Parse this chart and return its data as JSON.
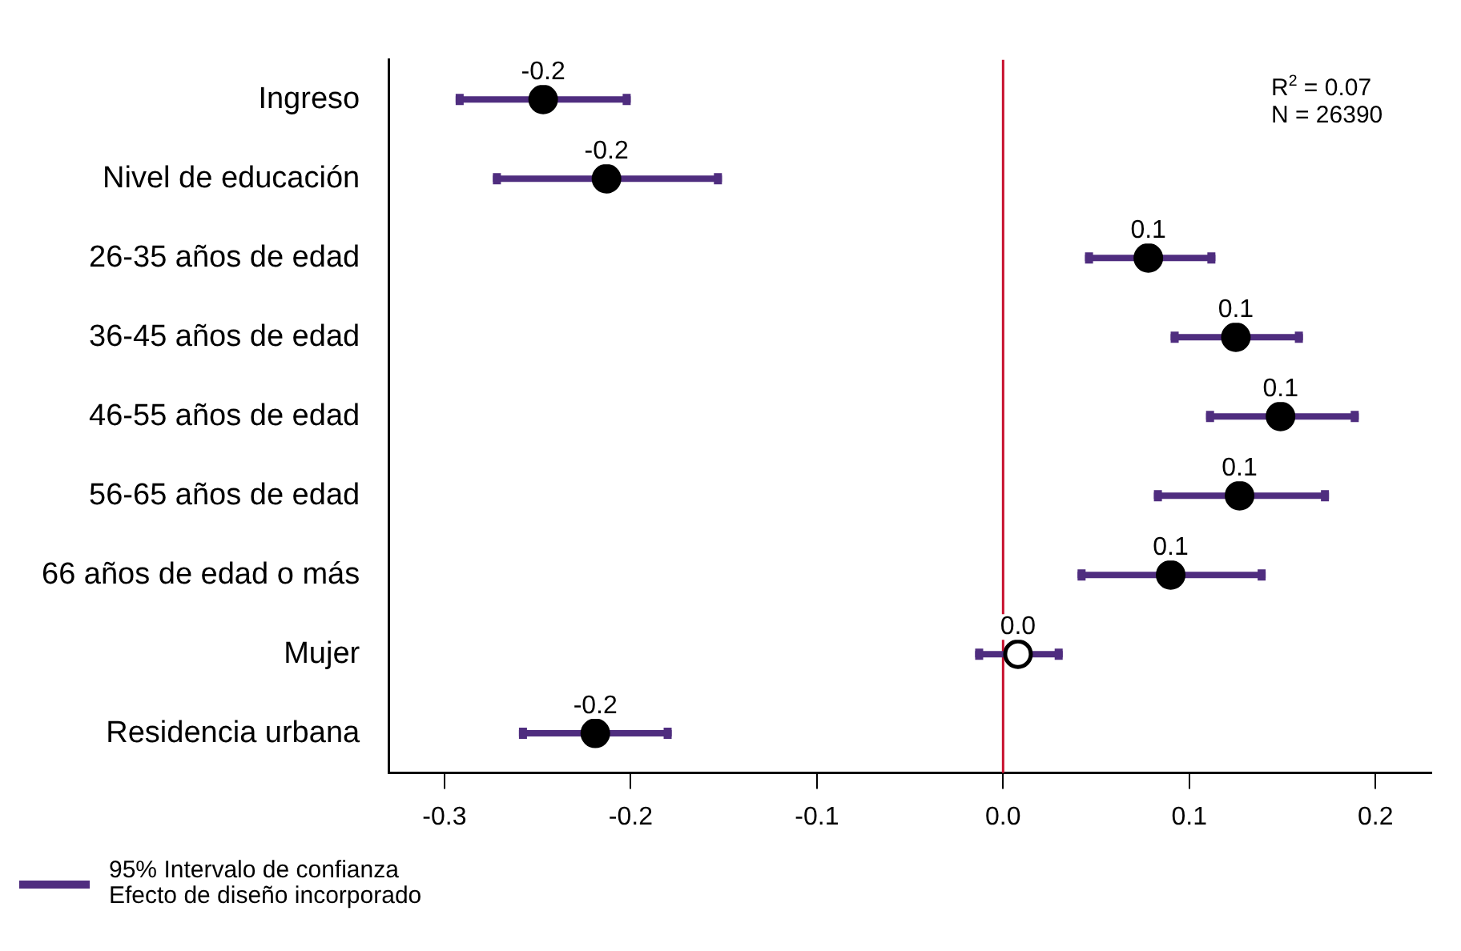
{
  "chart_data": {
    "type": "scatter",
    "orientation": "horizontal",
    "categories": [
      "Ingreso",
      "Nivel de educación",
      "26-35 años de edad",
      "36-45 años de edad",
      "46-55 años de edad",
      "56-65 años de edad",
      "66 años de edad o más",
      "Mujer",
      "Residencia urbana"
    ],
    "series": [
      {
        "color": "#000000",
        "values": [
          -0.247,
          -0.213,
          0.078,
          0.125,
          0.149,
          0.127,
          0.09,
          null,
          -0.219
        ],
        "errors": [
          [
            -0.294,
            -0.2
          ],
          [
            -0.274,
            -0.151
          ],
          [
            0.044,
            0.114
          ],
          [
            0.09,
            0.161
          ],
          [
            0.109,
            0.191
          ],
          [
            0.081,
            0.175
          ],
          [
            0.04,
            0.141
          ],
          null,
          [
            -0.26,
            -0.178
          ]
        ],
        "value_labels": [
          "-0.2",
          "-0.2",
          "0.1",
          "0.1",
          "0.1",
          "0.1",
          "0.1",
          null,
          "-0.2"
        ]
      },
      {
        "color": "#ffffff",
        "values": [
          null,
          null,
          null,
          null,
          null,
          null,
          null,
          0.008,
          null
        ],
        "errors": [
          null,
          null,
          null,
          null,
          null,
          null,
          null,
          [
            -0.015,
            0.032
          ],
          null
        ],
        "value_labels": [
          null,
          null,
          null,
          null,
          null,
          null,
          null,
          "0.0",
          null
        ]
      }
    ],
    "xlim": [
      -0.33,
      0.23
    ],
    "xticks": [
      -0.3,
      -0.2,
      -0.1,
      {
        "value": 0,
        "label": "0.0"
      },
      0.1,
      0.2
    ],
    "ref_lines": [
      {
        "axis": "x",
        "value": 0,
        "color": "#c8102e"
      }
    ],
    "marker": "circle",
    "grid": false,
    "legend": false,
    "annotations": [
      "R$^{2}$ = 0.07",
      "N = 26390",
      "95% Intervalo de confianza\nEfecto de diseño incorporado"
    ]
  }
}
